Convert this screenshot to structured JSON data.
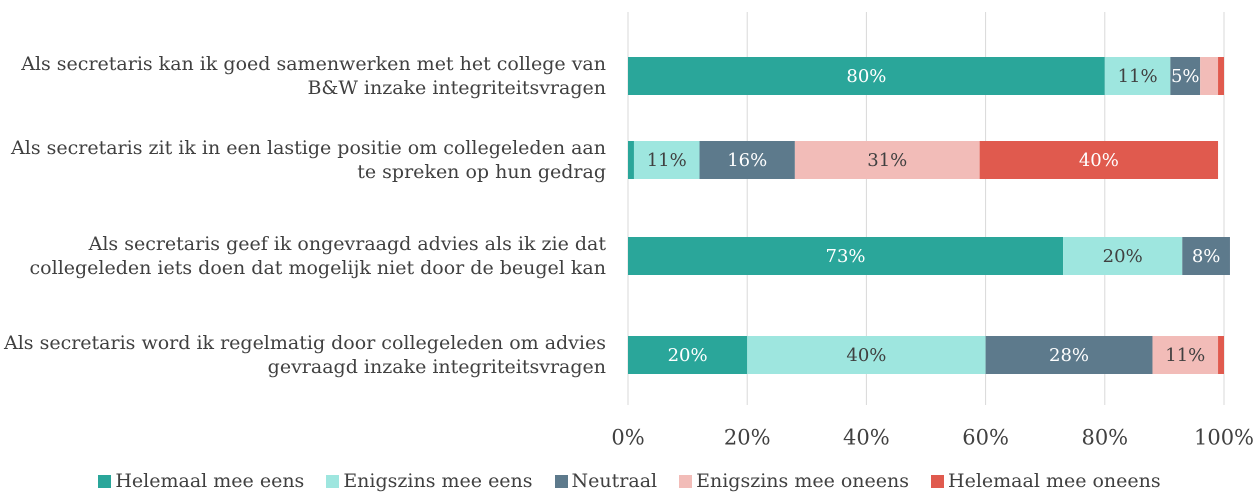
{
  "chart_data": {
    "type": "stacked_barh",
    "categories": [
      "Als secretaris kan ik goed samenwerken met het college van B&W inzake integriteitsvragen",
      "Als secretaris zit ik in een lastige positie om collegeleden aan te spreken op hun gedrag",
      "Als secretaris geef ik ongevraagd advies als ik zie dat collegeleden iets doen dat mogelijk niet door de beugel kan",
      "Als secretaris word ik regelmatig door collegeleden om advies gevraagd inzake integriteitsvragen"
    ],
    "series": [
      {
        "name": "Helemaal mee eens",
        "color": "#2aa69a",
        "values": [
          80,
          1,
          73,
          20
        ],
        "value_labels": [
          "80%",
          null,
          "73%",
          "20%"
        ]
      },
      {
        "name": "Enigszins mee eens",
        "color": "#9ee6df",
        "values": [
          11,
          11,
          20,
          40
        ],
        "value_labels": [
          "11%",
          "11%",
          "20%",
          "40%"
        ]
      },
      {
        "name": "Neutraal",
        "color": "#5d7a8c",
        "values": [
          5,
          16,
          8,
          28
        ],
        "value_labels": [
          "5%",
          "16%",
          "8%",
          "28%"
        ]
      },
      {
        "name": "Enigszins mee oneens",
        "color": "#f2bcb8",
        "values": [
          3,
          31,
          0,
          11
        ],
        "value_labels": [
          null,
          "31%",
          null,
          "11%"
        ]
      },
      {
        "name": "Helemaal mee oneens",
        "color": "#e05a4e",
        "values": [
          1,
          40,
          0,
          1
        ],
        "value_labels": [
          null,
          "40%",
          null,
          null
        ]
      }
    ],
    "xlim": [
      0,
      100
    ],
    "xticks": [
      {
        "value": 0,
        "label": "0%"
      },
      {
        "value": 20,
        "label": "20%"
      },
      {
        "value": 40,
        "label": "40%"
      },
      {
        "value": 60,
        "label": "60%"
      },
      {
        "value": 80,
        "label": "80%"
      },
      {
        "value": 100,
        "label": "100%"
      }
    ],
    "grid": true,
    "legend": "bottom"
  }
}
